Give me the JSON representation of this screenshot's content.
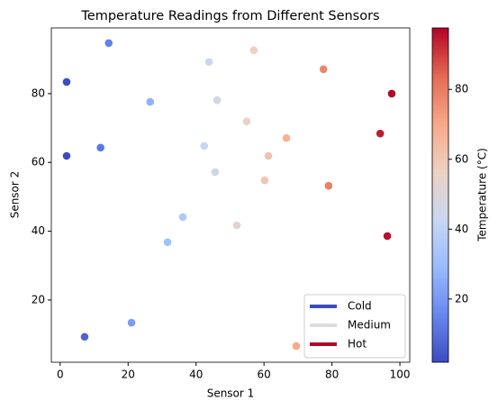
{
  "chart_data": {
    "type": "scatter",
    "title": "Temperature Readings from Different Sensors",
    "xlabel": "Sensor 1",
    "ylabel": "Sensor 2",
    "x": [
      14.3,
      1.9,
      1.9,
      11.9,
      26.5,
      7.2,
      21.0,
      31.6,
      36.1,
      43.8,
      46.2,
      42.4,
      45.6,
      52.0,
      57.0,
      54.9,
      60.2,
      61.3,
      66.6,
      69.5,
      77.5,
      79.0,
      94.2,
      97.6,
      96.3
    ],
    "y": [
      94.7,
      83.4,
      61.9,
      64.3,
      77.6,
      9.3,
      13.4,
      36.8,
      44.1,
      89.2,
      78.1,
      64.8,
      57.2,
      41.7,
      92.6,
      71.9,
      54.8,
      61.9,
      67.1,
      6.6,
      87.1,
      53.2,
      68.4,
      80.0,
      38.6
    ],
    "temperature": [
      14.3,
      1.9,
      1.9,
      11.9,
      26.5,
      7.2,
      21.0,
      31.6,
      36.1,
      43.8,
      46.2,
      42.4,
      45.6,
      52.0,
      57.0,
      54.9,
      60.2,
      61.3,
      66.6,
      69.5,
      77.5,
      79.0,
      94.2,
      97.6,
      96.3
    ],
    "xlim": [
      -2.6,
      102.9
    ],
    "ylim": [
      1.9,
      99.1
    ],
    "xticks": [
      0,
      20,
      40,
      60,
      80,
      100
    ],
    "yticks": [
      20,
      40,
      60,
      80
    ],
    "colorbar": {
      "label": "Temperature (°C)",
      "lim": [
        1.9,
        97.6
      ],
      "ticks": [
        20,
        40,
        60,
        80
      ],
      "colors": [
        "#3b4cc0",
        "#6788ee",
        "#9abbff",
        "#c9d7f0",
        "#edd1c2",
        "#f7a889",
        "#e26952",
        "#b40426"
      ]
    },
    "legend": {
      "loc": "lower right",
      "entries": [
        {
          "name": "Cold",
          "color": "#3b4cc0"
        },
        {
          "name": "Medium",
          "color": "#dddddd"
        },
        {
          "name": "Hot",
          "color": "#b40426"
        }
      ]
    }
  }
}
